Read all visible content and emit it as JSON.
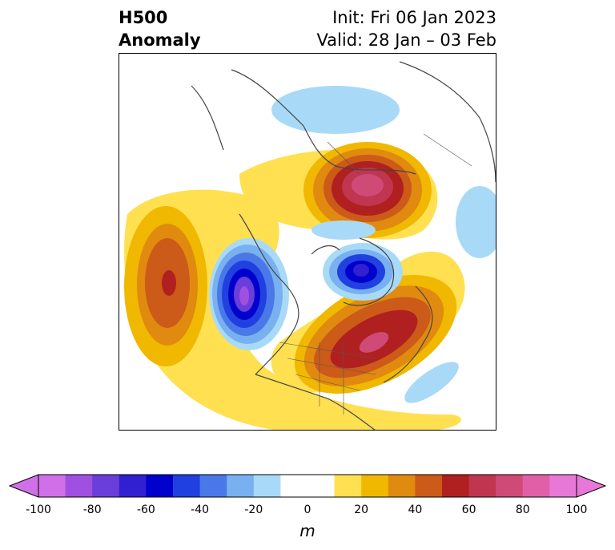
{
  "title": {
    "left_line1": "H500",
    "left_line2": "Anomaly",
    "right_line1": "Init: Fri 06 Jan 2023",
    "right_line2": "Valid: 28 Jan – 03 Feb"
  },
  "colorbar": {
    "unit": "m",
    "ticks": [
      "-100",
      "-80",
      "-60",
      "-40",
      "-20",
      "0",
      "20",
      "40",
      "60",
      "80",
      "100"
    ],
    "bins": [
      {
        "from": -100,
        "to": -90,
        "color": "#d070e8"
      },
      {
        "from": -90,
        "to": -80,
        "color": "#a050e0"
      },
      {
        "from": -80,
        "to": -70,
        "color": "#6a3ed8"
      },
      {
        "from": -70,
        "to": -60,
        "color": "#3020d0"
      },
      {
        "from": -60,
        "to": -50,
        "color": "#0000cc"
      },
      {
        "from": -50,
        "to": -40,
        "color": "#2040e0"
      },
      {
        "from": -40,
        "to": -30,
        "color": "#4a78e8"
      },
      {
        "from": -30,
        "to": -20,
        "color": "#78b0f0"
      },
      {
        "from": -20,
        "to": -10,
        "color": "#a8daf8"
      },
      {
        "from": -10,
        "to": 10,
        "color": "#ffffff"
      },
      {
        "from": 10,
        "to": 20,
        "color": "#ffe050"
      },
      {
        "from": 20,
        "to": 30,
        "color": "#f0b800"
      },
      {
        "from": 30,
        "to": 40,
        "color": "#e08a10"
      },
      {
        "from": 40,
        "to": 50,
        "color": "#cc5a18"
      },
      {
        "from": 50,
        "to": 60,
        "color": "#b02020"
      },
      {
        "from": 60,
        "to": 70,
        "color": "#c03550"
      },
      {
        "from": 70,
        "to": 80,
        "color": "#d04a78"
      },
      {
        "from": 80,
        "to": 90,
        "color": "#e060a8"
      },
      {
        "from": 90,
        "to": 100,
        "color": "#e878d8"
      }
    ],
    "under_color": "#d070e8",
    "over_color": "#e878d8"
  },
  "map": {
    "projection": "polar stereographic, North America centered",
    "anomaly_centers": [
      {
        "region": "North Pacific / Gulf of Alaska",
        "sign": "positive",
        "peak_m": 60
      },
      {
        "region": "Western Canada / Pacific Northwest",
        "sign": "negative",
        "peak_m": -90
      },
      {
        "region": "Hudson Bay / Baffin",
        "sign": "negative",
        "peak_m": -60
      },
      {
        "region": "Eastern US / Western Atlantic",
        "sign": "positive",
        "peak_m": 70
      },
      {
        "region": "Northern Siberia / Kara Sea",
        "sign": "positive",
        "peak_m": 80
      },
      {
        "region": "Europe / North Atlantic",
        "sign": "negative",
        "peak_m": -20
      }
    ]
  }
}
